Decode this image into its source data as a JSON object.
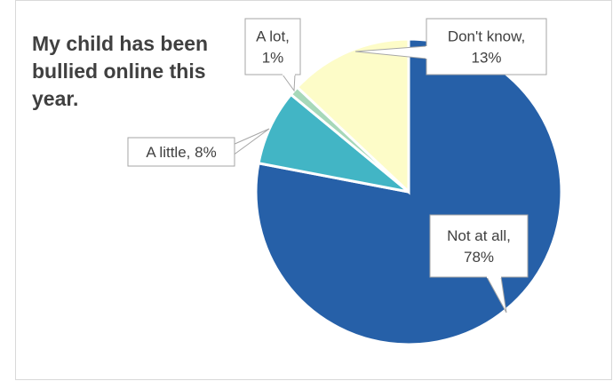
{
  "chart_data": {
    "type": "pie",
    "title": "My child has been bullied online this year.",
    "slices": [
      {
        "label": "Not at all",
        "value": 78,
        "display": "78%",
        "color": "#2660a8"
      },
      {
        "label": "A little",
        "value": 8,
        "display": "8%",
        "color": "#42b5c5"
      },
      {
        "label": "A lot",
        "value": 1,
        "display": "1%",
        "color": "#a7d8b9"
      },
      {
        "label": "Don't know",
        "value": 13,
        "display": "13%",
        "color": "#fdfcc8"
      }
    ]
  }
}
